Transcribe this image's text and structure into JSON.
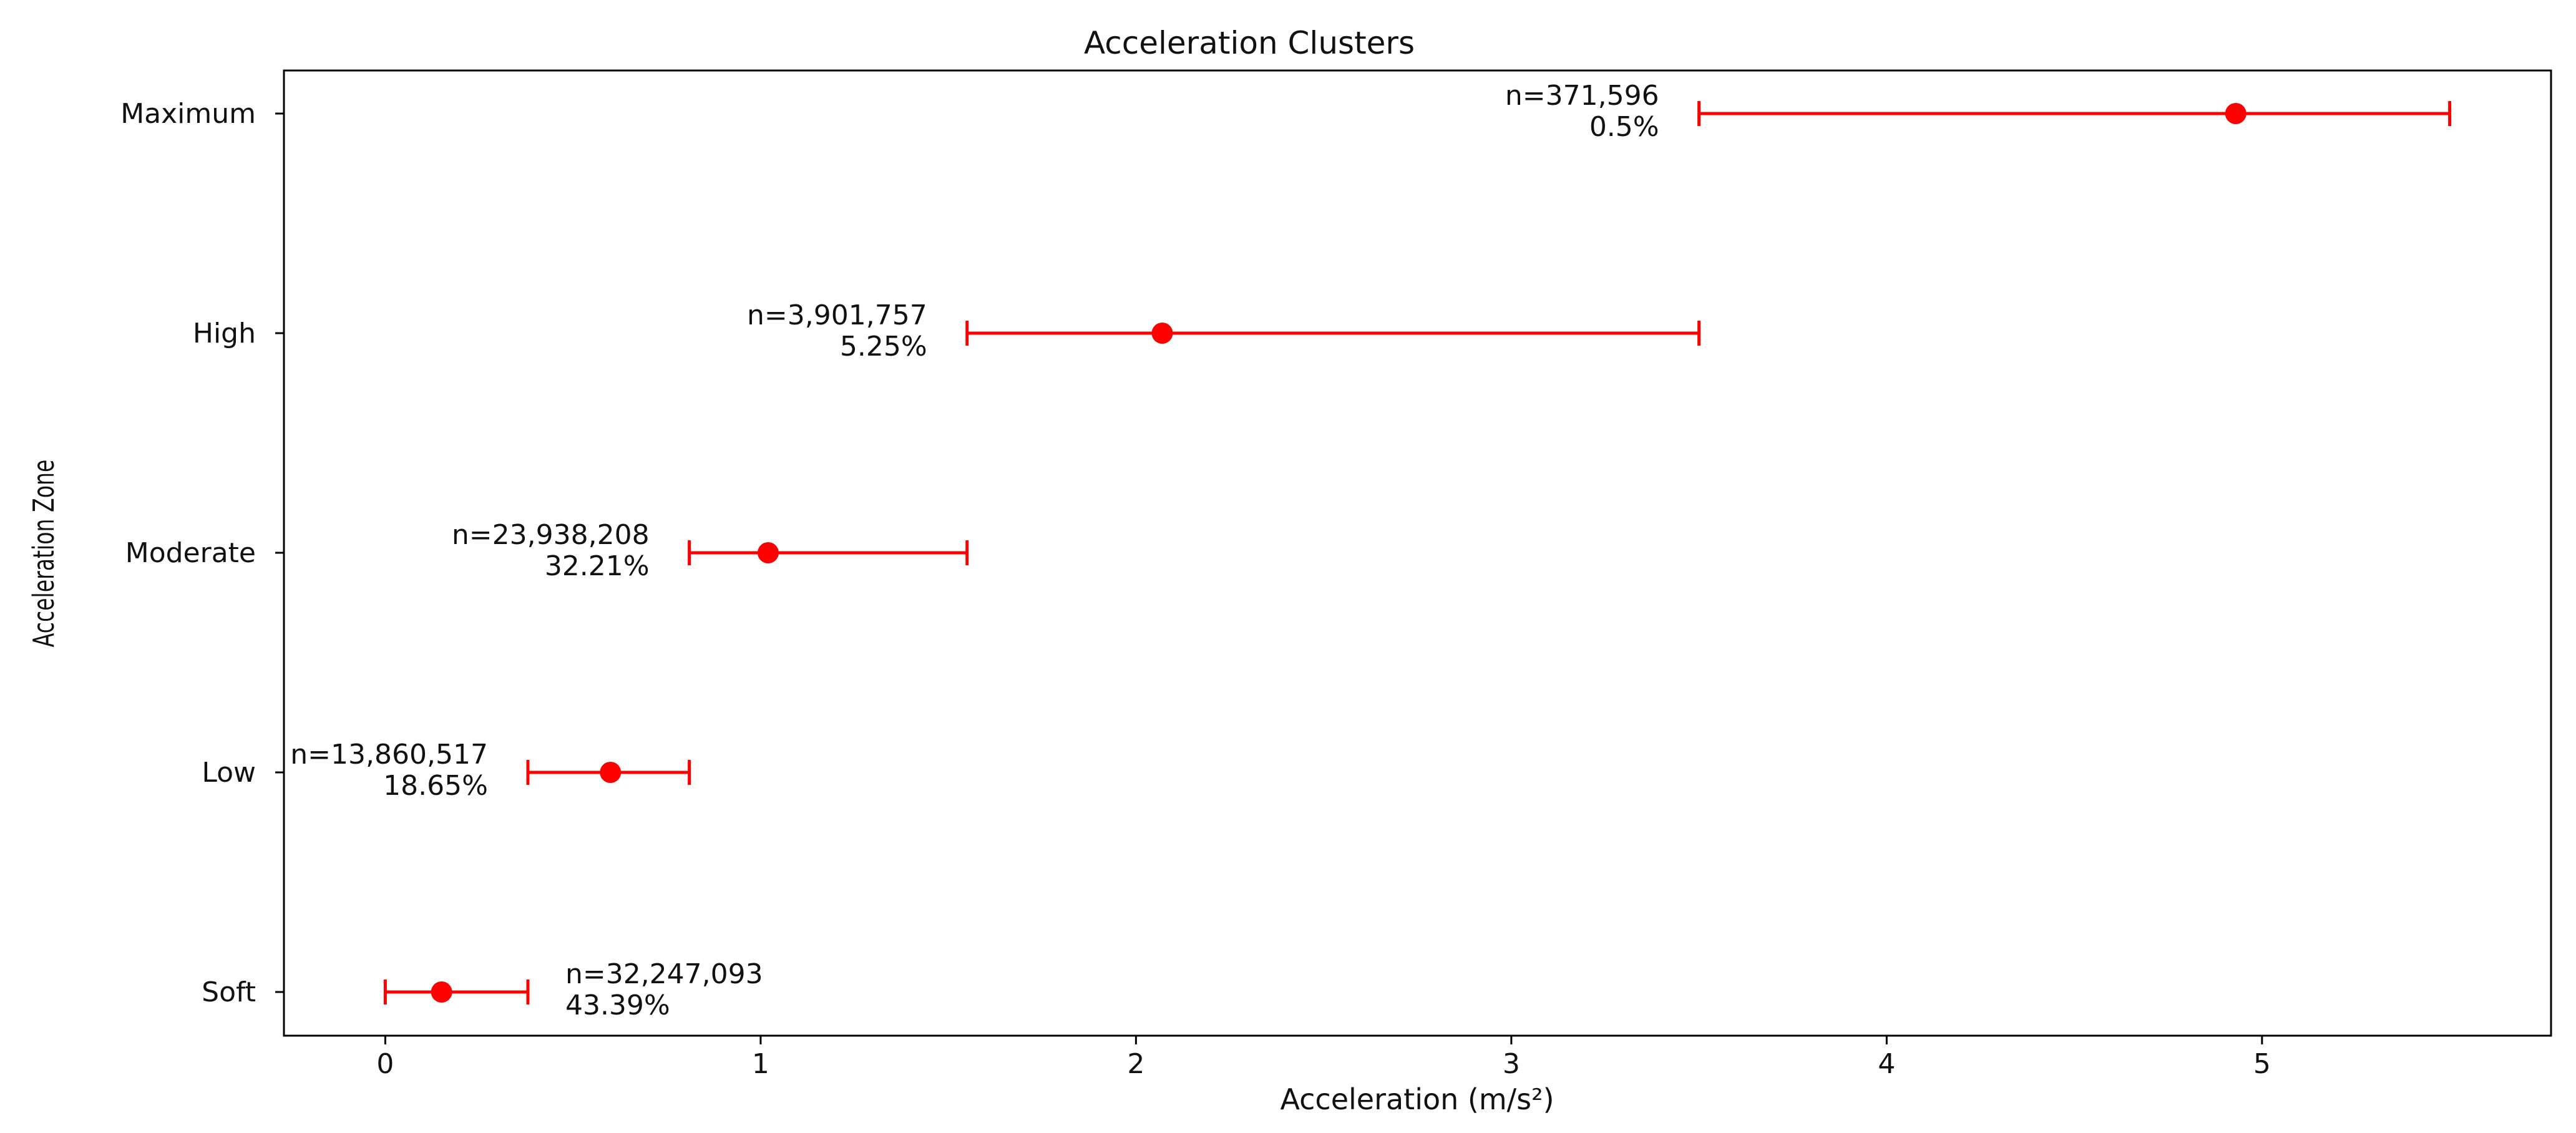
{
  "chart_data": {
    "type": "scatter",
    "title": "Acceleration Clusters",
    "xlabel": "Acceleration (m/s²)",
    "ylabel": "Acceleration Zone",
    "xlim": [
      -0.27,
      5.77
    ],
    "xticks": [
      0,
      1,
      2,
      3,
      4,
      5
    ],
    "grid": false,
    "color": "#ff0000",
    "categories": [
      "Soft",
      "Low",
      "Moderate",
      "High",
      "Maximum"
    ],
    "points": [
      {
        "zone": "Soft",
        "mean": 0.15,
        "min": 0.0,
        "max": 0.38,
        "count_label": "n=32,247,093",
        "pct_label": "43.39%"
      },
      {
        "zone": "Low",
        "mean": 0.6,
        "min": 0.38,
        "max": 0.81,
        "count_label": "n=13,860,517",
        "pct_label": "18.65%"
      },
      {
        "zone": "Moderate",
        "mean": 1.02,
        "min": 0.81,
        "max": 1.55,
        "count_label": "n=23,938,208",
        "pct_label": "32.21%"
      },
      {
        "zone": "High",
        "mean": 2.07,
        "min": 1.55,
        "max": 3.5,
        "count_label": "n=3,901,757",
        "pct_label": "5.25%"
      },
      {
        "zone": "Maximum",
        "mean": 4.93,
        "min": 3.5,
        "max": 5.5,
        "count_label": "n=371,596",
        "pct_label": "0.5%"
      }
    ]
  }
}
